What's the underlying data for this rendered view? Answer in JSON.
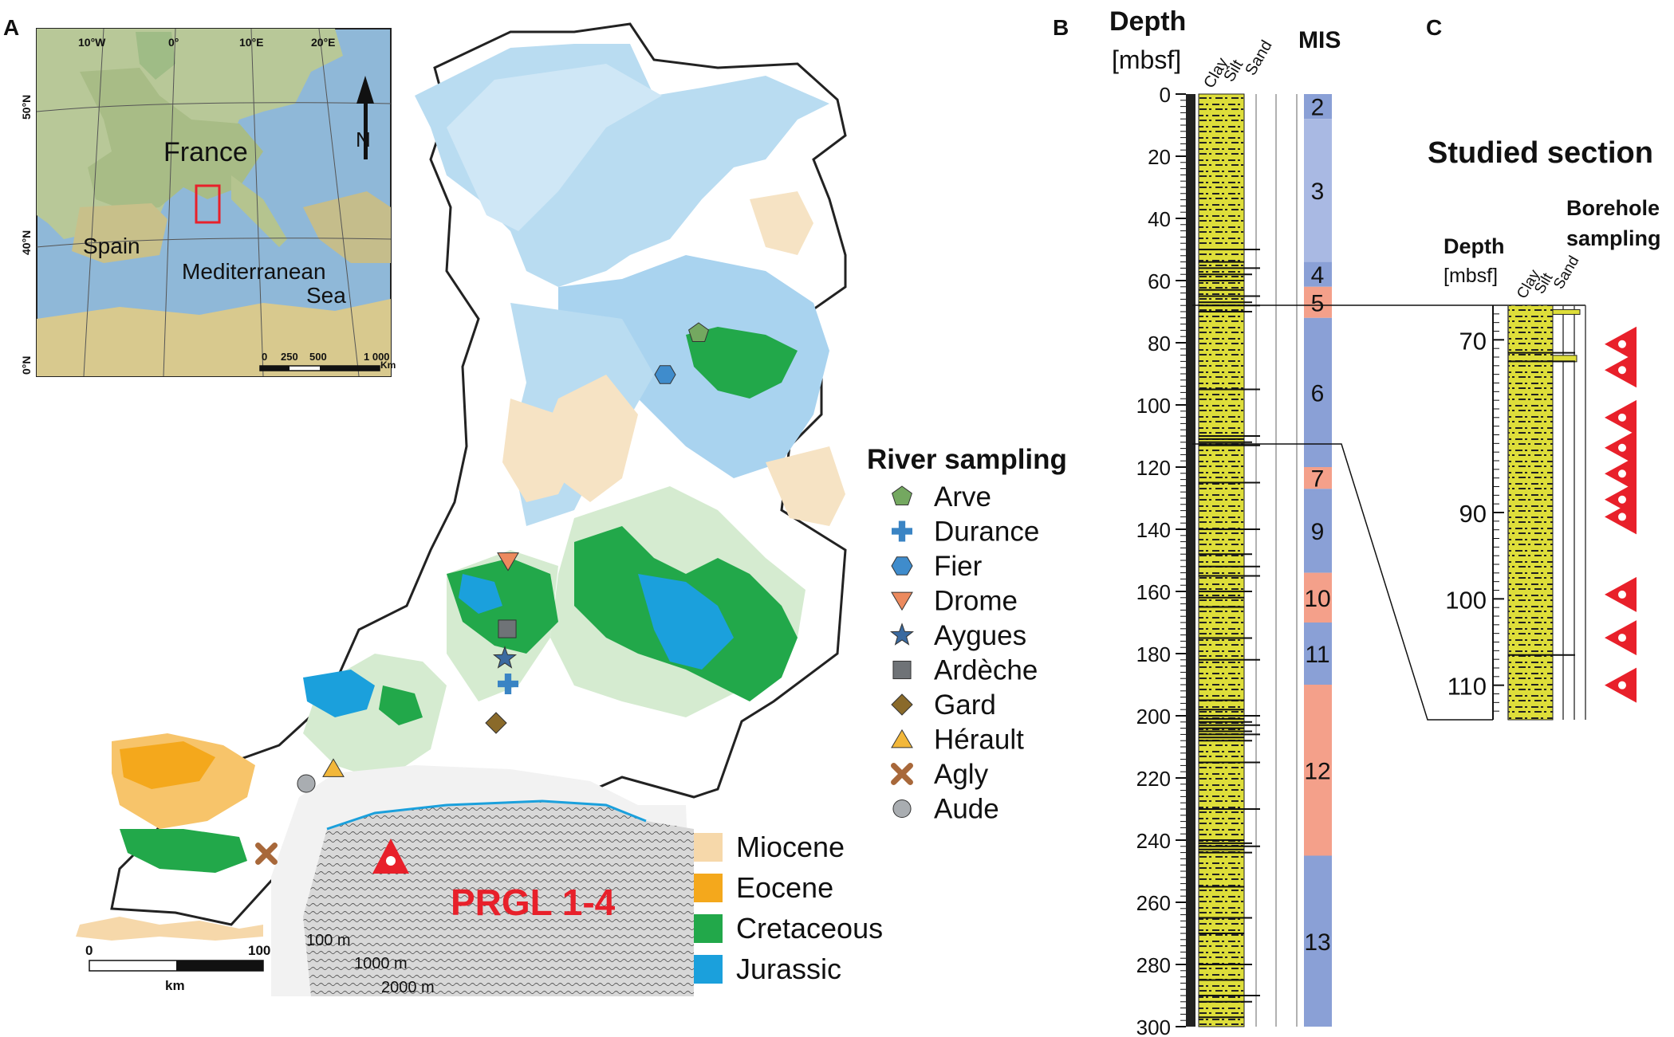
{
  "panels": {
    "a": "A",
    "b": "B",
    "c": "C"
  },
  "inset": {
    "lon_labels": [
      "10°W",
      "0°",
      "10°E",
      "20°E"
    ],
    "lat_labels": [
      "50°N",
      "40°N",
      "0°N"
    ],
    "country_labels": {
      "france": "France",
      "spain": "Spain",
      "sea_1": "Mediterranean",
      "sea_2": "Sea"
    },
    "north": "N",
    "scale_labels": [
      "0",
      "250",
      "500",
      "1 000"
    ],
    "scale_unit": "Km"
  },
  "map": {
    "site_label": "PRGL 1-4",
    "contours": [
      "100 m",
      "1000 m",
      "2000 m"
    ],
    "scale_labels": [
      "0",
      "100"
    ],
    "scale_unit": "km"
  },
  "river_legend": {
    "title": "River sampling",
    "items": [
      {
        "label": "Arve",
        "shape": "pentagon",
        "color": "#74a860"
      },
      {
        "label": "Durance",
        "shape": "cross",
        "color": "#3a84c4"
      },
      {
        "label": "Fier",
        "shape": "hexagon",
        "color": "#3f8ccc"
      },
      {
        "label": "Drome",
        "shape": "triangle-down",
        "color": "#ec8a5e"
      },
      {
        "label": "Aygues",
        "shape": "star",
        "color": "#3a6aa0"
      },
      {
        "label": "Ardèche",
        "shape": "square",
        "color": "#6f7377"
      },
      {
        "label": "Gard",
        "shape": "diamond",
        "color": "#8a6a2a"
      },
      {
        "label": "Hérault",
        "shape": "triangle-up",
        "color": "#f2b73a"
      },
      {
        "label": "Agly",
        "shape": "x",
        "color": "#a8683a"
      },
      {
        "label": "Aude",
        "shape": "circle",
        "color": "#a9adb1"
      }
    ]
  },
  "geology_legend": [
    {
      "label": "Miocene",
      "color": "#f6d8aa"
    },
    {
      "label": "Eocene",
      "color": "#f4a81c"
    },
    {
      "label": "Cretaceous",
      "color": "#22a84a"
    },
    {
      "label": "Jurassic",
      "color": "#1ba0dc"
    }
  ],
  "log_b": {
    "depth_title": "Depth",
    "depth_unit": "[mbsf]",
    "grain_labels": [
      "Clay",
      "Silt",
      "Sand"
    ],
    "mis_title": "MIS",
    "ticks": [
      "0",
      "20",
      "40",
      "60",
      "80",
      "100",
      "120",
      "140",
      "160",
      "180",
      "200",
      "220",
      "240",
      "260",
      "280",
      "300"
    ],
    "mis_stages": [
      {
        "label": "2",
        "top": 0,
        "bottom": 8,
        "color": "#8aa0d6"
      },
      {
        "label": "3",
        "top": 8,
        "bottom": 54,
        "color": "#a9b9e3"
      },
      {
        "label": "4",
        "top": 54,
        "bottom": 62,
        "color": "#8aa0d6"
      },
      {
        "label": "5",
        "top": 62,
        "bottom": 72,
        "color": "#f4a08a"
      },
      {
        "label": "6",
        "top": 72,
        "bottom": 120,
        "color": "#8aa0d6"
      },
      {
        "label": "7",
        "top": 120,
        "bottom": 127,
        "color": "#f4a08a"
      },
      {
        "label": "9",
        "top": 127,
        "bottom": 154,
        "color": "#8aa0d6"
      },
      {
        "label": "10",
        "top": 154,
        "bottom": 170,
        "color": "#f4a08a"
      },
      {
        "label": "11",
        "top": 170,
        "bottom": 190,
        "color": "#8aa0d6"
      },
      {
        "label": "12",
        "top": 190,
        "bottom": 245,
        "color": "#f4a08a"
      },
      {
        "label": "13",
        "top": 245,
        "bottom": 300,
        "color": "#8aa0d6"
      }
    ]
  },
  "log_c": {
    "title": "Studied section",
    "sampling_title_1": "Borehole",
    "sampling_title_2": "sampling",
    "depth_title": "Depth",
    "depth_unit": "[mbsf]",
    "grain_labels": [
      "Clay",
      "Silt",
      "Sand"
    ],
    "ticks": [
      "70",
      "90",
      "100",
      "110"
    ],
    "samples": [
      70.5,
      73.5,
      79,
      82.5,
      85.5,
      88.5,
      90.5,
      99.5,
      104.5,
      110
    ]
  }
}
